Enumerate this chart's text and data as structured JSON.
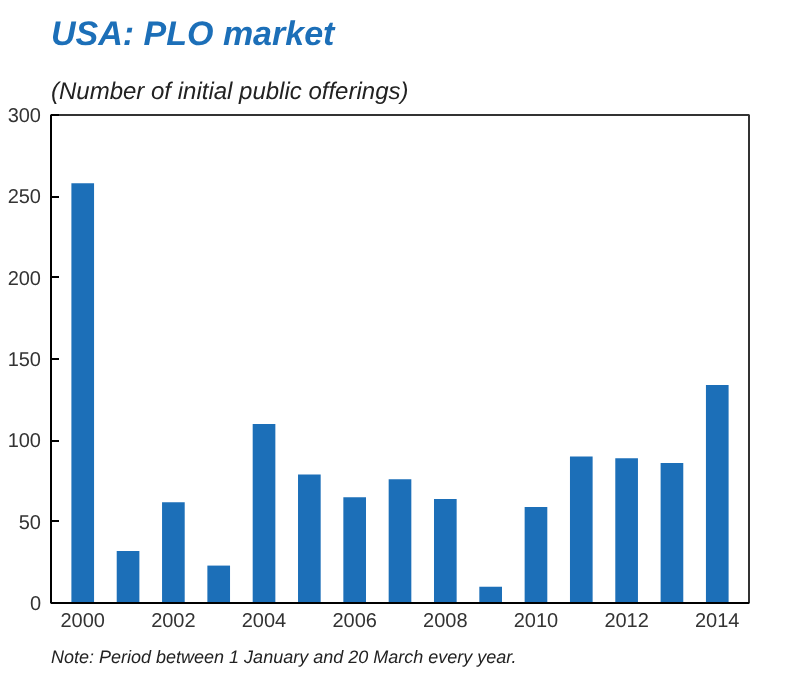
{
  "chart_data": {
    "type": "bar",
    "title": "USA: PLO market",
    "subtitle": "(Number of initial public offerings)",
    "categories": [
      "2000",
      null,
      "2002",
      null,
      "2004",
      null,
      "2006",
      null,
      "2008",
      null,
      "2010",
      null,
      "2012",
      null,
      "2014"
    ],
    "values": [
      258,
      32,
      62,
      23,
      110,
      79,
      65,
      76,
      64,
      10,
      59,
      90,
      89,
      86,
      134
    ],
    "color": "#1c6fb8",
    "ylim": [
      0,
      300
    ],
    "yticks": [
      0,
      50,
      100,
      150,
      200,
      250,
      300
    ],
    "grid": false,
    "annotations": [
      "Note: Period between 1 January and 20 March every year."
    ]
  }
}
